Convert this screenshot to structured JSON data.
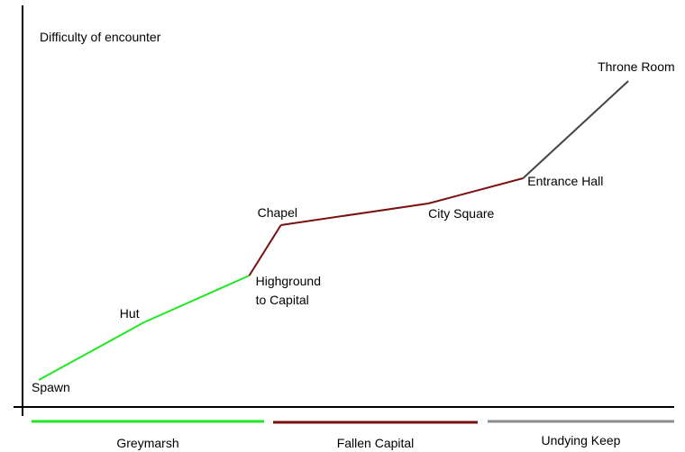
{
  "chart_data": {
    "type": "line",
    "ylabel": "Difficulty of encounter",
    "grid": false,
    "points": [
      {
        "label": "Spawn",
        "x": 0,
        "y": 0
      },
      {
        "label": "Hut",
        "x": 1,
        "y": 1.6
      },
      {
        "label": "Highground to Capital",
        "label_lines": [
          "Highground",
          "to Capital"
        ],
        "x": 2,
        "y": 2.9
      },
      {
        "label": "Chapel",
        "x": 2.3,
        "y": 4.3
      },
      {
        "label": "City Square",
        "x": 3.7,
        "y": 4.9
      },
      {
        "label": "Entrance Hall",
        "x": 4.6,
        "y": 5.6
      },
      {
        "label": "Throne Room",
        "x": 5.6,
        "y": 8.3
      }
    ],
    "segments": [
      {
        "from": 0,
        "to": 1,
        "region": 0
      },
      {
        "from": 1,
        "to": 2,
        "region": 0
      },
      {
        "from": 2,
        "to": 3,
        "region": 1
      },
      {
        "from": 3,
        "to": 4,
        "region": 1
      },
      {
        "from": 4,
        "to": 5,
        "region": 1
      },
      {
        "from": 5,
        "to": 6,
        "region": 2
      }
    ],
    "regions": [
      {
        "name": "Greymarsh",
        "color": "#22e622"
      },
      {
        "name": "Fallen Capital",
        "color": "#7a1010"
      },
      {
        "name": "Undying Keep",
        "color": "#8c8c8c",
        "line_color": "#444444"
      }
    ]
  }
}
